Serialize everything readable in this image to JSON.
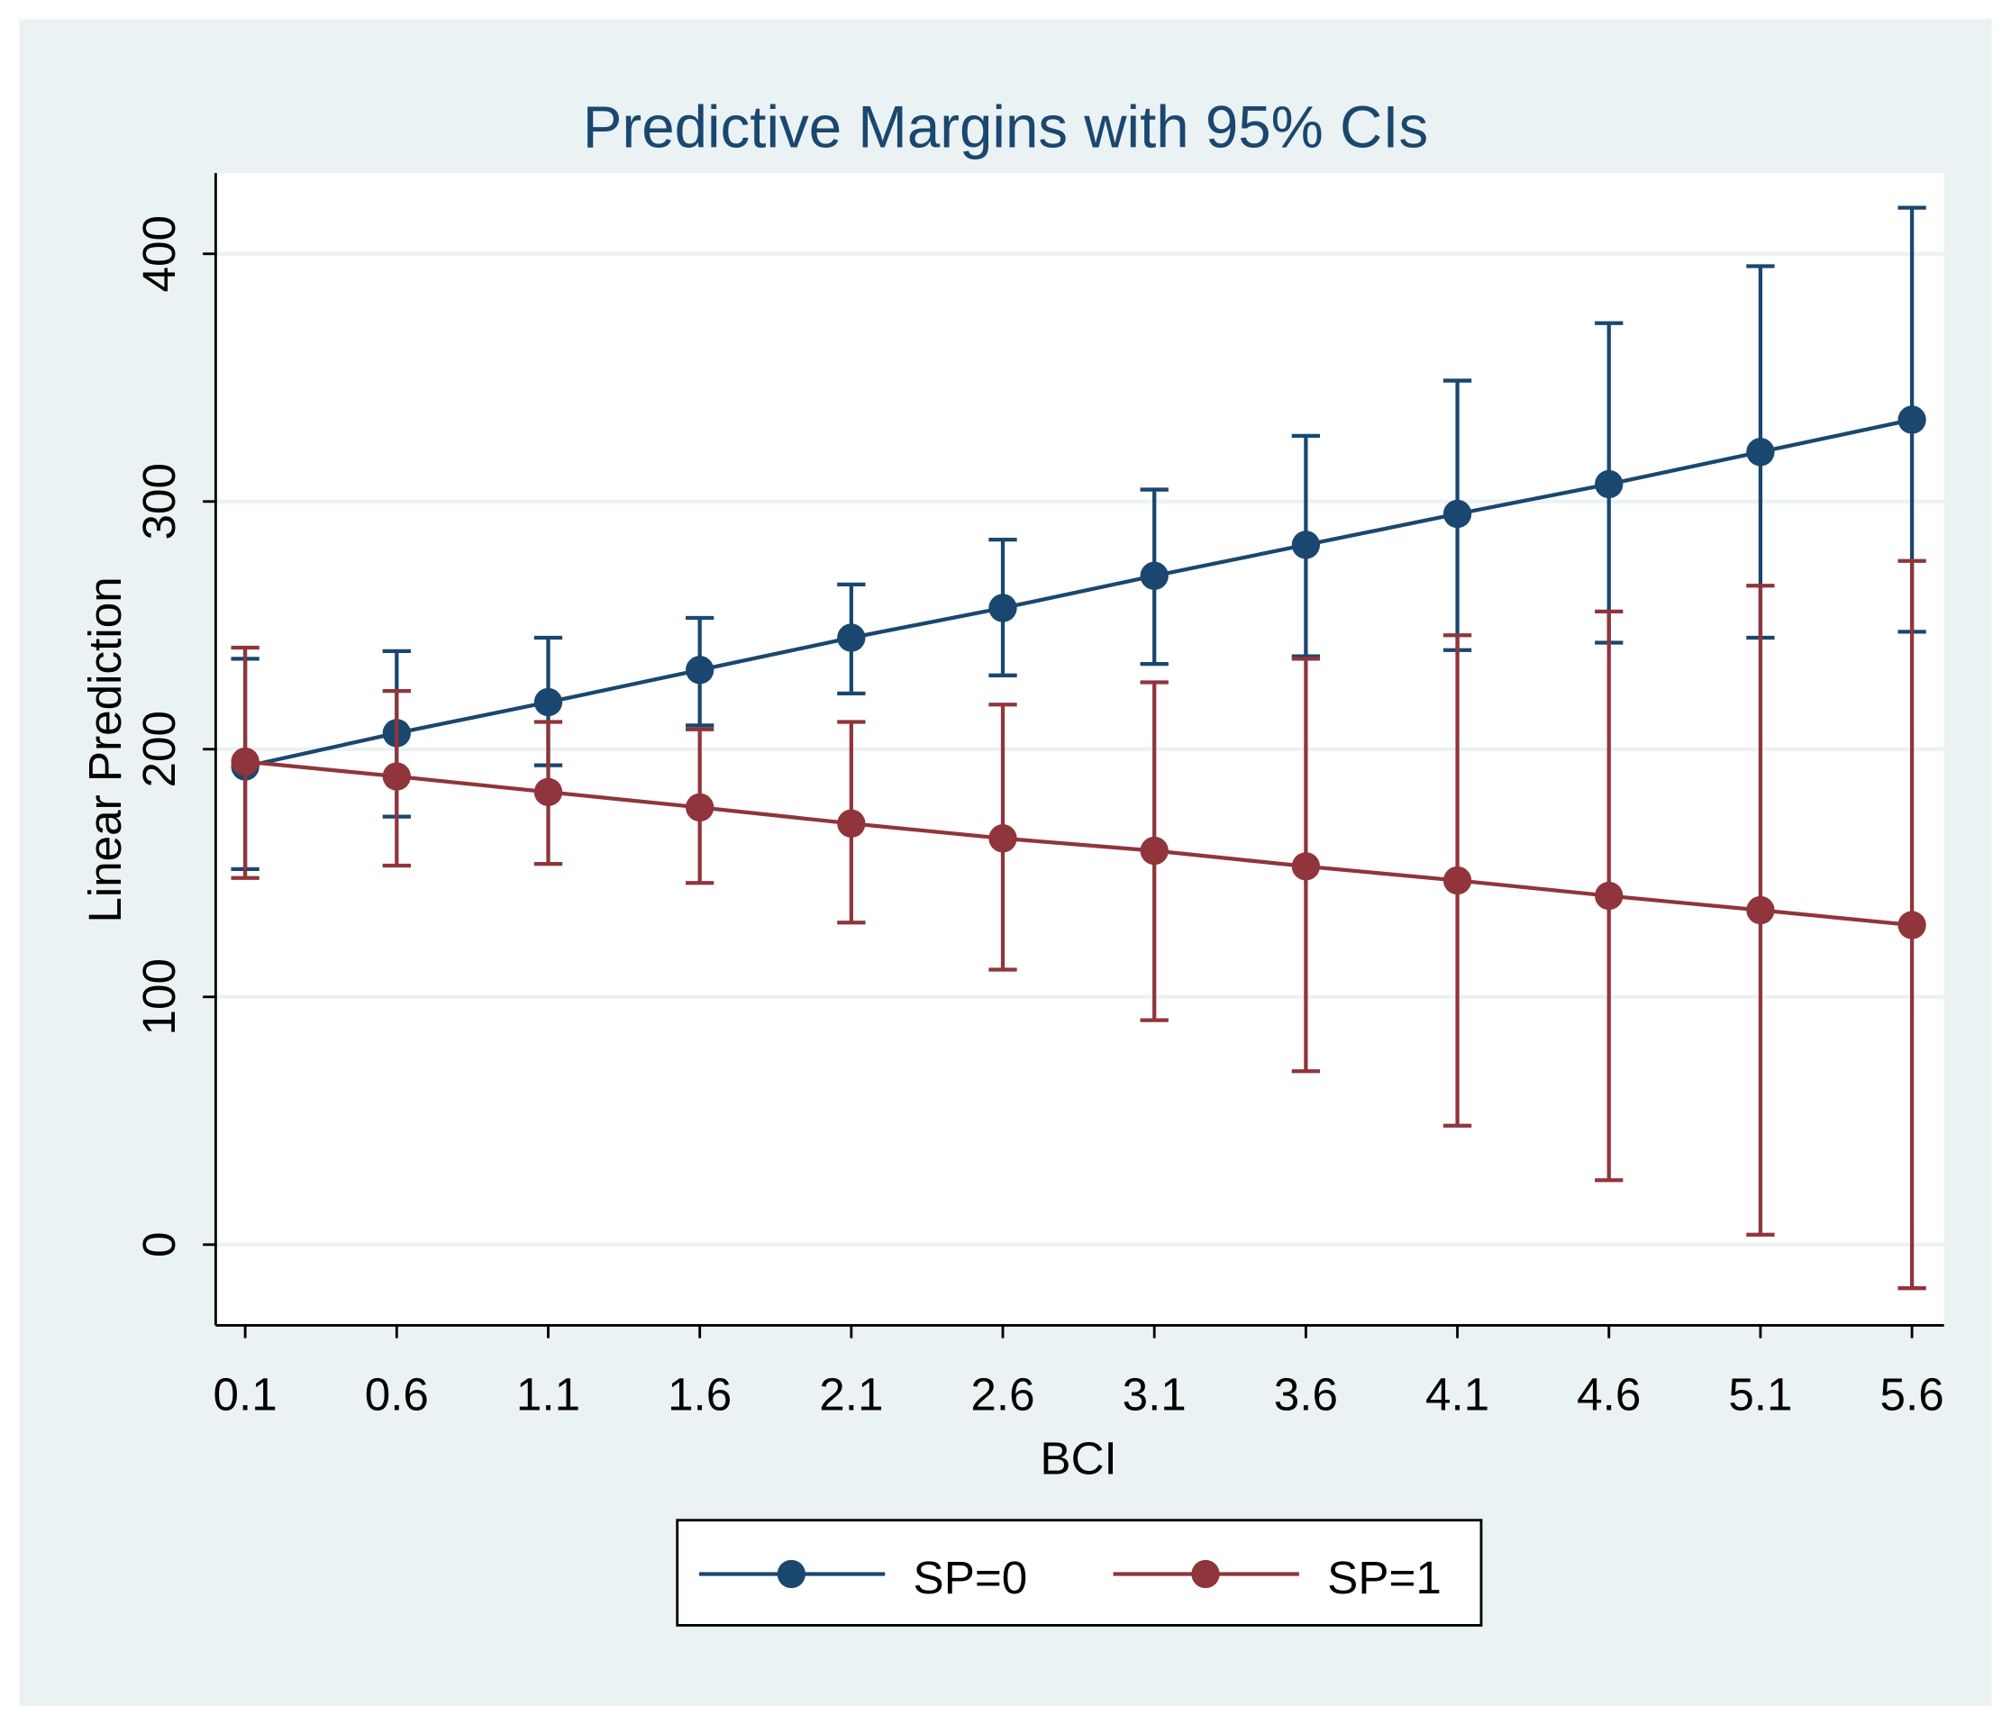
{
  "chart_data": {
    "type": "line",
    "title": "Predictive Margins with 95% CIs",
    "xlabel": "BCI",
    "ylabel": "Linear Prediction",
    "x": [
      0.1,
      0.6,
      1.1,
      1.6,
      2.1,
      2.6,
      3.1,
      3.6,
      4.1,
      4.6,
      5.1,
      5.6
    ],
    "x_tick_labels": [
      "0.1",
      "0.6",
      "1.1",
      "1.6",
      "2.1",
      "2.6",
      "3.1",
      "3.6",
      "4.1",
      "4.6",
      "5.1",
      "5.6"
    ],
    "y_ticks": [
      0,
      100,
      200,
      300,
      400
    ],
    "y_tick_labels": [
      "0",
      "100",
      "200",
      "300",
      "400"
    ],
    "xlim": [
      0.0,
      5.7
    ],
    "ylim": [
      -32,
      433
    ],
    "grid": true,
    "legend_position": "bottom-center",
    "series": [
      {
        "name": "SP=0",
        "color": "#1a476f",
        "values": [
          193,
          206.5,
          219,
          232,
          245,
          257,
          270,
          282.5,
          295,
          307,
          320,
          333
        ],
        "ci_lower": [
          151.6,
          172.8,
          193.5,
          209.6,
          222.5,
          229.8,
          234.4,
          237.5,
          240,
          243,
          245,
          247.4
        ],
        "ci_upper": [
          236.5,
          239.6,
          245,
          253,
          266.5,
          284.6,
          304.8,
          326.5,
          348.8,
          372,
          395,
          418.6
        ]
      },
      {
        "name": "SP=1",
        "color": "#90353b",
        "values": [
          195,
          189,
          182.7,
          176.5,
          170,
          164,
          159,
          152.7,
          147,
          140.8,
          135,
          129
        ],
        "ci_lower": [
          148,
          153,
          153.7,
          146,
          130,
          111,
          90.6,
          70,
          48,
          26,
          4,
          -17.6
        ],
        "ci_upper": [
          241,
          223.5,
          211,
          208,
          211,
          218,
          227,
          236.5,
          246,
          255.6,
          266,
          276
        ]
      }
    ]
  }
}
